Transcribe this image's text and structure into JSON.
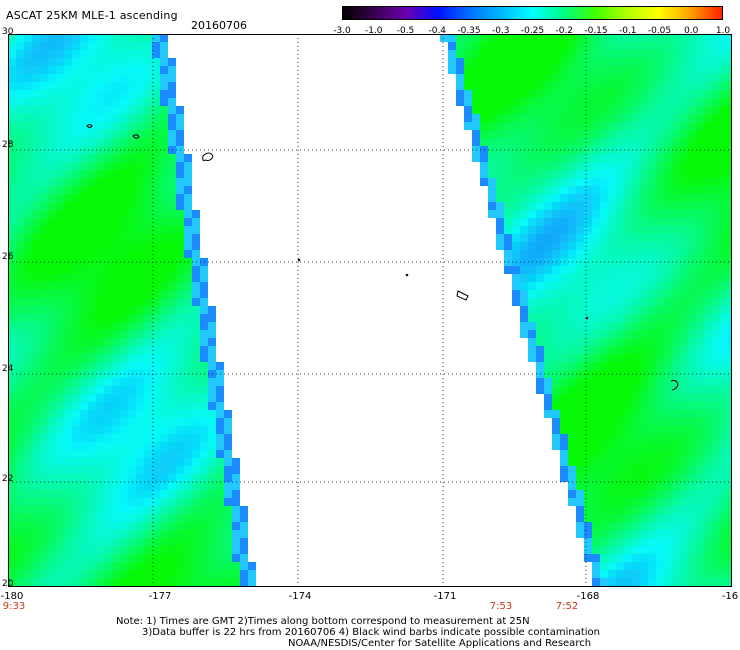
{
  "header": {
    "title": "ASCAT 25KM MLE-1 ascending",
    "date": "20160706"
  },
  "colorbar": {
    "labels": [
      "-3.0",
      "-1.0",
      "-0.5",
      "-0.4",
      "-0.35",
      "-0.3",
      "-0.25",
      "-0.2",
      "-0.15",
      "-0.1",
      "-0.05",
      "0.0",
      "1.0"
    ],
    "colors": [
      "#000000",
      "#3a0050",
      "#6a00b0",
      "#0010ff",
      "#0070ff",
      "#00b8ff",
      "#00ffff",
      "#00ff80",
      "#40ff00",
      "#b0ff00",
      "#ffff00",
      "#ffa000",
      "#ff2000"
    ]
  },
  "axes": {
    "y_labels": [
      "30",
      "28",
      "26",
      "24",
      "22",
      "20"
    ],
    "x_labels": [
      "-180",
      "-177",
      "-174",
      "-171",
      "-168",
      "-16"
    ],
    "time_labels": [
      "9:33",
      "7:53",
      "7:52"
    ]
  },
  "notes": {
    "line1": "Note: 1) Times are GMT 2)Times along bottom correspond to measurement at 25N",
    "line2": "3)Data buffer is 22 hrs from 20160706 4) Black wind barbs indicate possible contamination",
    "line3": "NOAA/NESDIS/Center for Satellite Applications and Research"
  }
}
